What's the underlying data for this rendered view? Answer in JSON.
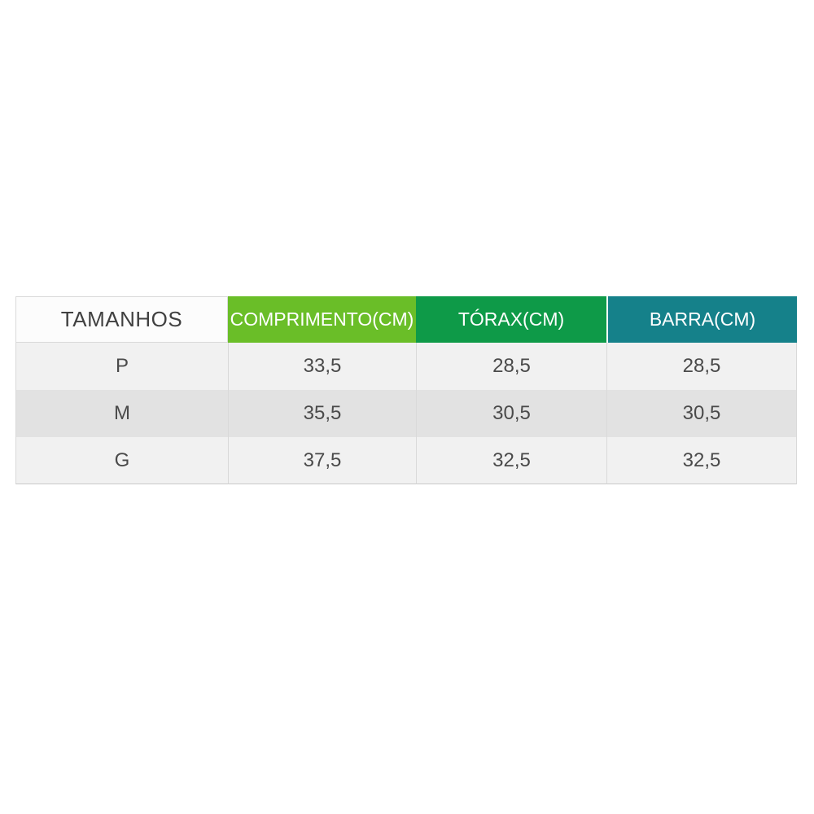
{
  "table": {
    "columns": [
      {
        "id": "tamanhos",
        "label": "TAMANHOS"
      },
      {
        "id": "comprimento",
        "label": "COMPRIMENTO(CM)"
      },
      {
        "id": "torax",
        "label": "TÓRAX(CM)"
      },
      {
        "id": "barra",
        "label": "BARRA(CM)"
      }
    ],
    "rows": [
      {
        "tamanho": "P",
        "comprimento": "33,5",
        "torax": "28,5",
        "barra": "28,5"
      },
      {
        "tamanho": "M",
        "comprimento": "35,5",
        "torax": "30,5",
        "barra": "30,5"
      },
      {
        "tamanho": "G",
        "comprimento": "37,5",
        "torax": "32,5",
        "barra": "32,5"
      }
    ]
  },
  "colors": {
    "header-comprimento-bg": "#6abe28",
    "header-torax-bg": "#0e9a48",
    "header-barra-bg": "#15818a",
    "header-tamanhos-bg": "#fcfcfc",
    "header-text": "#ffffff",
    "tamanhos-text": "#404040",
    "body-text": "#4a4a4a",
    "row-light-bg": "#f1f1f1",
    "row-dark-bg": "#e2e2e2",
    "border": "#d9d9d9"
  },
  "chart_data": {
    "type": "table",
    "title": "",
    "columns": [
      "TAMANHOS",
      "COMPRIMENTO(CM)",
      "TÓRAX(CM)",
      "BARRA(CM)"
    ],
    "rows": [
      [
        "P",
        "33,5",
        "28,5",
        "28,5"
      ],
      [
        "M",
        "35,5",
        "30,5",
        "30,5"
      ],
      [
        "G",
        "37,5",
        "32,5",
        "32,5"
      ]
    ]
  }
}
